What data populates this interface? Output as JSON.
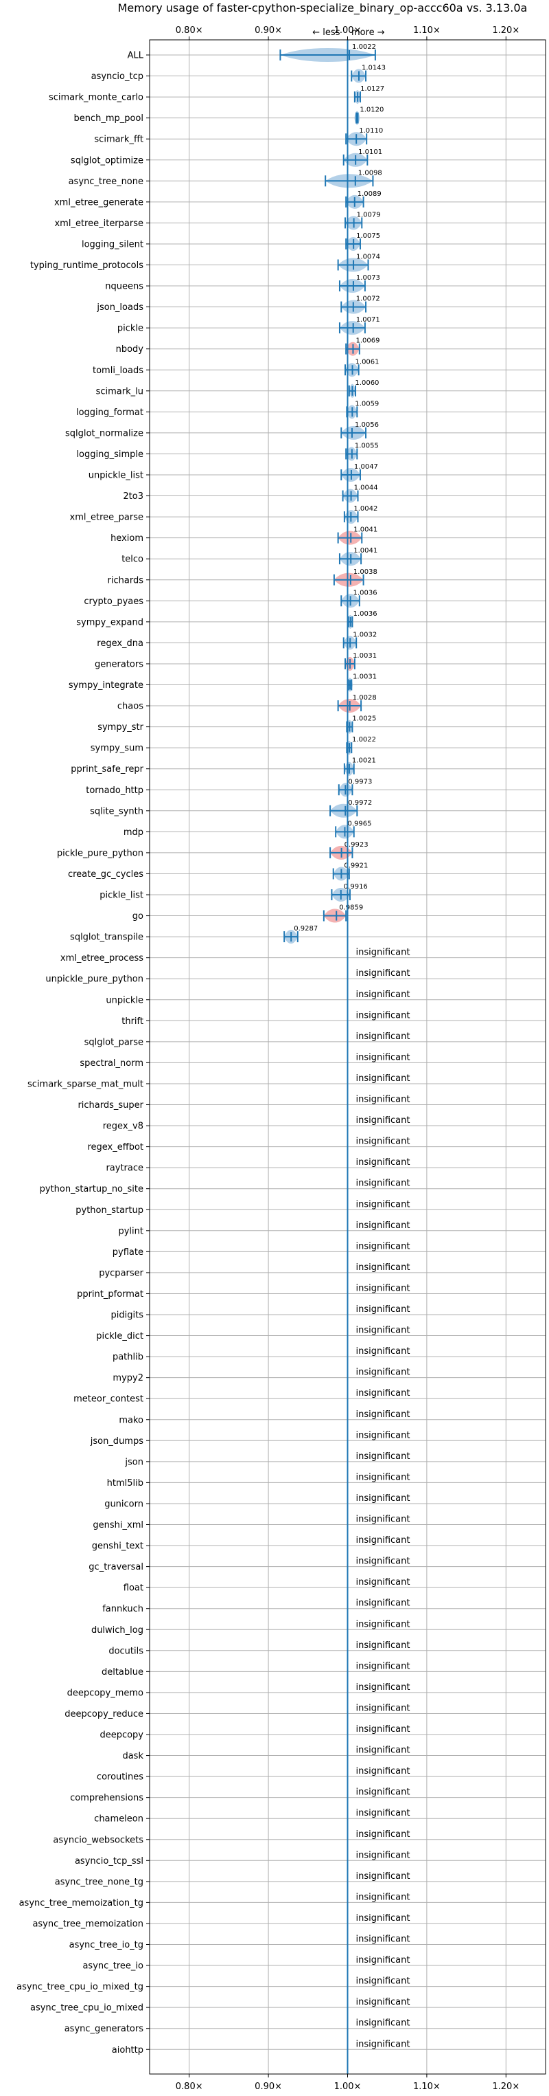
{
  "chart_data": {
    "type": "scatter",
    "title": "Memory usage of faster-cpython-specialize_binary_op-accc60a vs. 3.13.0a",
    "direction_label": "← less    more →",
    "x_ticks": [
      "0.80×",
      "0.90×",
      "1.00×",
      "1.10×",
      "1.20×"
    ],
    "x_tick_values": [
      0.8,
      0.9,
      1.0,
      1.1,
      1.2
    ],
    "xlim": [
      0.75,
      1.25
    ],
    "reference_line": 1.0,
    "insignificant_label": "insignificant",
    "colors": {
      "line": "#1f77b4",
      "violin": "#a6c8e4",
      "violin_red": "#f2a5a5",
      "grid": "#b0b0b0"
    },
    "benchmarks": [
      {
        "name": "ALL",
        "value": 1.0022,
        "label": "1.0022",
        "low": 0.915,
        "high": 1.035,
        "color": "blue"
      },
      {
        "name": "asyncio_tcp",
        "value": 1.0143,
        "label": "1.0143",
        "low": 1.005,
        "high": 1.023,
        "color": "blue"
      },
      {
        "name": "scimark_monte_carlo",
        "value": 1.0127,
        "label": "1.0127",
        "low": 1.009,
        "high": 1.016,
        "color": "blue"
      },
      {
        "name": "bench_mp_pool",
        "value": 1.012,
        "label": "1.0120",
        "low": 1.011,
        "high": 1.013,
        "color": "blue"
      },
      {
        "name": "scimark_fft",
        "value": 1.011,
        "label": "1.0110",
        "low": 0.998,
        "high": 1.024,
        "color": "blue"
      },
      {
        "name": "sqlglot_optimize",
        "value": 1.0101,
        "label": "1.0101",
        "low": 0.995,
        "high": 1.025,
        "color": "blue"
      },
      {
        "name": "async_tree_none",
        "value": 1.0098,
        "label": "1.0098",
        "low": 0.972,
        "high": 1.032,
        "color": "blue"
      },
      {
        "name": "xml_etree_generate",
        "value": 1.0089,
        "label": "1.0089",
        "low": 0.998,
        "high": 1.02,
        "color": "blue"
      },
      {
        "name": "xml_etree_iterparse",
        "value": 1.0079,
        "label": "1.0079",
        "low": 0.997,
        "high": 1.018,
        "color": "blue"
      },
      {
        "name": "logging_silent",
        "value": 1.0075,
        "label": "1.0075",
        "low": 0.998,
        "high": 1.016,
        "color": "blue"
      },
      {
        "name": "typing_runtime_protocols",
        "value": 1.0074,
        "label": "1.0074",
        "low": 0.988,
        "high": 1.026,
        "color": "blue"
      },
      {
        "name": "nqueens",
        "value": 1.0073,
        "label": "1.0073",
        "low": 0.99,
        "high": 1.022,
        "color": "blue"
      },
      {
        "name": "json_loads",
        "value": 1.0072,
        "label": "1.0072",
        "low": 0.992,
        "high": 1.023,
        "color": "blue"
      },
      {
        "name": "pickle",
        "value": 1.0071,
        "label": "1.0071",
        "low": 0.99,
        "high": 1.022,
        "color": "blue"
      },
      {
        "name": "nbody",
        "value": 1.0069,
        "label": "1.0069",
        "low": 0.998,
        "high": 1.015,
        "color": "red"
      },
      {
        "name": "tomli_loads",
        "value": 1.0061,
        "label": "1.0061",
        "low": 0.997,
        "high": 1.014,
        "color": "blue"
      },
      {
        "name": "scimark_lu",
        "value": 1.006,
        "label": "1.0060",
        "low": 1.002,
        "high": 1.01,
        "color": "blue"
      },
      {
        "name": "logging_format",
        "value": 1.0059,
        "label": "1.0059",
        "low": 0.999,
        "high": 1.012,
        "color": "blue"
      },
      {
        "name": "sqlglot_normalize",
        "value": 1.0056,
        "label": "1.0056",
        "low": 0.992,
        "high": 1.023,
        "color": "blue"
      },
      {
        "name": "logging_simple",
        "value": 1.0055,
        "label": "1.0055",
        "low": 0.998,
        "high": 1.012,
        "color": "blue"
      },
      {
        "name": "unpickle_list",
        "value": 1.0047,
        "label": "1.0047",
        "low": 0.992,
        "high": 1.016,
        "color": "blue"
      },
      {
        "name": "2to3",
        "value": 1.0044,
        "label": "1.0044",
        "low": 0.994,
        "high": 1.013,
        "color": "blue"
      },
      {
        "name": "xml_etree_parse",
        "value": 1.0042,
        "label": "1.0042",
        "low": 0.996,
        "high": 1.013,
        "color": "blue"
      },
      {
        "name": "hexiom",
        "value": 1.0041,
        "label": "1.0041",
        "low": 0.988,
        "high": 1.018,
        "color": "red"
      },
      {
        "name": "telco",
        "value": 1.0041,
        "label": "1.0041",
        "low": 0.99,
        "high": 1.017,
        "color": "blue"
      },
      {
        "name": "richards",
        "value": 1.0038,
        "label": "1.0038",
        "low": 0.983,
        "high": 1.02,
        "color": "red"
      },
      {
        "name": "crypto_pyaes",
        "value": 1.0036,
        "label": "1.0036",
        "low": 0.992,
        "high": 1.015,
        "color": "blue"
      },
      {
        "name": "sympy_expand",
        "value": 1.0036,
        "label": "1.0036",
        "low": 1.001,
        "high": 1.006,
        "color": "blue"
      },
      {
        "name": "regex_dna",
        "value": 1.0032,
        "label": "1.0032",
        "low": 0.995,
        "high": 1.011,
        "color": "blue"
      },
      {
        "name": "generators",
        "value": 1.0031,
        "label": "1.0031",
        "low": 0.997,
        "high": 1.009,
        "color": "red"
      },
      {
        "name": "sympy_integrate",
        "value": 1.0031,
        "label": "1.0031",
        "low": 1.001,
        "high": 1.005,
        "color": "blue"
      },
      {
        "name": "chaos",
        "value": 1.0028,
        "label": "1.0028",
        "low": 0.988,
        "high": 1.017,
        "color": "red"
      },
      {
        "name": "sympy_str",
        "value": 1.0025,
        "label": "1.0025",
        "low": 0.999,
        "high": 1.006,
        "color": "blue"
      },
      {
        "name": "sympy_sum",
        "value": 1.0022,
        "label": "1.0022",
        "low": 0.999,
        "high": 1.005,
        "color": "blue"
      },
      {
        "name": "pprint_safe_repr",
        "value": 1.0021,
        "label": "1.0021",
        "low": 0.996,
        "high": 1.008,
        "color": "blue"
      },
      {
        "name": "tornado_http",
        "value": 0.9973,
        "label": "0.9973",
        "low": 0.989,
        "high": 1.006,
        "color": "blue"
      },
      {
        "name": "sqlite_synth",
        "value": 0.9972,
        "label": "0.9972",
        "low": 0.978,
        "high": 1.012,
        "color": "blue"
      },
      {
        "name": "mdp",
        "value": 0.9965,
        "label": "0.9965",
        "low": 0.985,
        "high": 1.008,
        "color": "blue"
      },
      {
        "name": "pickle_pure_python",
        "value": 0.9923,
        "label": "0.9923",
        "low": 0.978,
        "high": 1.006,
        "color": "red"
      },
      {
        "name": "create_gc_cycles",
        "value": 0.9921,
        "label": "0.9921",
        "low": 0.982,
        "high": 1.002,
        "color": "blue"
      },
      {
        "name": "pickle_list",
        "value": 0.9916,
        "label": "0.9916",
        "low": 0.98,
        "high": 1.003,
        "color": "blue"
      },
      {
        "name": "go",
        "value": 0.9859,
        "label": "0.9859",
        "low": 0.97,
        "high": 0.998,
        "color": "red"
      },
      {
        "name": "sqlglot_transpile",
        "value": 0.9287,
        "label": "0.9287",
        "low": 0.92,
        "high": 0.937,
        "color": "blue"
      },
      {
        "name": "xml_etree_process",
        "insignificant": true
      },
      {
        "name": "unpickle_pure_python",
        "insignificant": true
      },
      {
        "name": "unpickle",
        "insignificant": true
      },
      {
        "name": "thrift",
        "insignificant": true
      },
      {
        "name": "sqlglot_parse",
        "insignificant": true
      },
      {
        "name": "spectral_norm",
        "insignificant": true
      },
      {
        "name": "scimark_sparse_mat_mult",
        "insignificant": true
      },
      {
        "name": "richards_super",
        "insignificant": true
      },
      {
        "name": "regex_v8",
        "insignificant": true
      },
      {
        "name": "regex_effbot",
        "insignificant": true
      },
      {
        "name": "raytrace",
        "insignificant": true
      },
      {
        "name": "python_startup_no_site",
        "insignificant": true
      },
      {
        "name": "python_startup",
        "insignificant": true
      },
      {
        "name": "pylint",
        "insignificant": true
      },
      {
        "name": "pyflate",
        "insignificant": true
      },
      {
        "name": "pycparser",
        "insignificant": true
      },
      {
        "name": "pprint_pformat",
        "insignificant": true
      },
      {
        "name": "pidigits",
        "insignificant": true
      },
      {
        "name": "pickle_dict",
        "insignificant": true
      },
      {
        "name": "pathlib",
        "insignificant": true
      },
      {
        "name": "mypy2",
        "insignificant": true
      },
      {
        "name": "meteor_contest",
        "insignificant": true
      },
      {
        "name": "mako",
        "insignificant": true
      },
      {
        "name": "json_dumps",
        "insignificant": true
      },
      {
        "name": "json",
        "insignificant": true
      },
      {
        "name": "html5lib",
        "insignificant": true
      },
      {
        "name": "gunicorn",
        "insignificant": true
      },
      {
        "name": "genshi_xml",
        "insignificant": true
      },
      {
        "name": "genshi_text",
        "insignificant": true
      },
      {
        "name": "gc_traversal",
        "insignificant": true
      },
      {
        "name": "float",
        "insignificant": true
      },
      {
        "name": "fannkuch",
        "insignificant": true
      },
      {
        "name": "dulwich_log",
        "insignificant": true
      },
      {
        "name": "docutils",
        "insignificant": true
      },
      {
        "name": "deltablue",
        "insignificant": true
      },
      {
        "name": "deepcopy_memo",
        "insignificant": true
      },
      {
        "name": "deepcopy_reduce",
        "insignificant": true
      },
      {
        "name": "deepcopy",
        "insignificant": true
      },
      {
        "name": "dask",
        "insignificant": true
      },
      {
        "name": "coroutines",
        "insignificant": true
      },
      {
        "name": "comprehensions",
        "insignificant": true
      },
      {
        "name": "chameleon",
        "insignificant": true
      },
      {
        "name": "asyncio_websockets",
        "insignificant": true
      },
      {
        "name": "asyncio_tcp_ssl",
        "insignificant": true
      },
      {
        "name": "async_tree_none_tg",
        "insignificant": true
      },
      {
        "name": "async_tree_memoization_tg",
        "insignificant": true
      },
      {
        "name": "async_tree_memoization",
        "insignificant": true
      },
      {
        "name": "async_tree_io_tg",
        "insignificant": true
      },
      {
        "name": "async_tree_io",
        "insignificant": true
      },
      {
        "name": "async_tree_cpu_io_mixed_tg",
        "insignificant": true
      },
      {
        "name": "async_tree_cpu_io_mixed",
        "insignificant": true
      },
      {
        "name": "async_generators",
        "insignificant": true
      },
      {
        "name": "aiohttp",
        "insignificant": true
      }
    ]
  }
}
